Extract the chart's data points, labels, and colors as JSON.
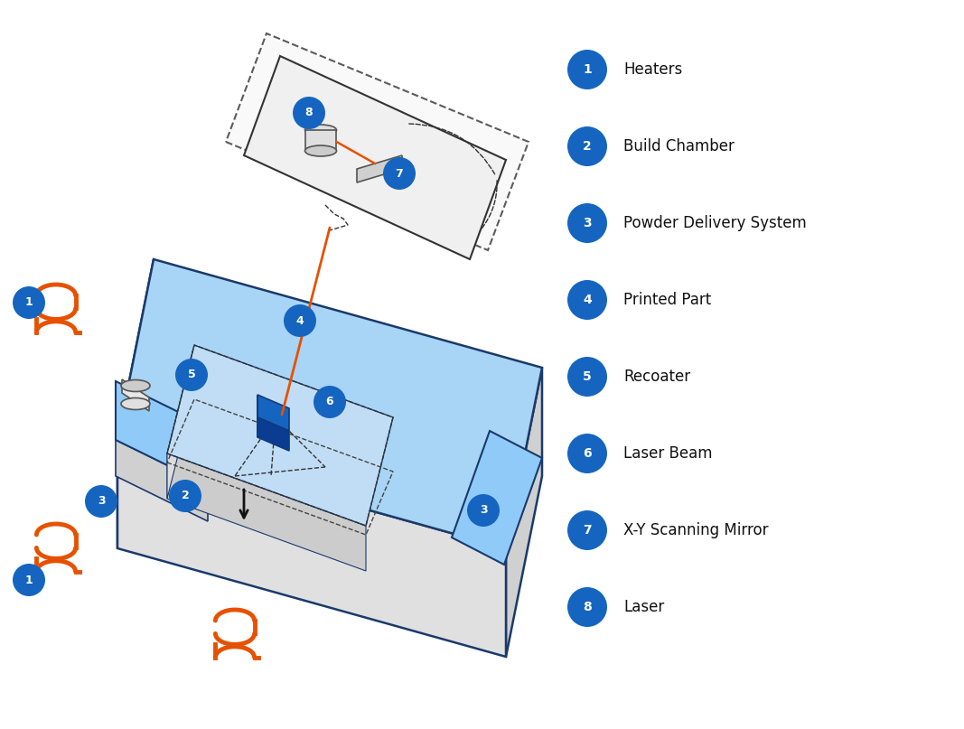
{
  "bg_color": "#ffffff",
  "blue_circle_color": "#1565C0",
  "orange_color": "#E65100",
  "light_blue": "#64B5F6",
  "powder_blue": "#90CAF9",
  "box_edge_color": "#1565C0",
  "label_items": [
    {
      "num": "1",
      "label": "Heaters"
    },
    {
      "num": "2",
      "label": "Build Chamber"
    },
    {
      "num": "3",
      "label": "Powder Delivery System"
    },
    {
      "num": "4",
      "label": "Printed Part"
    },
    {
      "num": "5",
      "label": "Recoater"
    },
    {
      "num": "6",
      "label": "Laser Beam"
    },
    {
      "num": "7",
      "label": "X-Y Scanning Mirror"
    },
    {
      "num": "8",
      "label": "Laser"
    }
  ],
  "figsize": [
    10.67,
    8.07
  ],
  "dpi": 100
}
